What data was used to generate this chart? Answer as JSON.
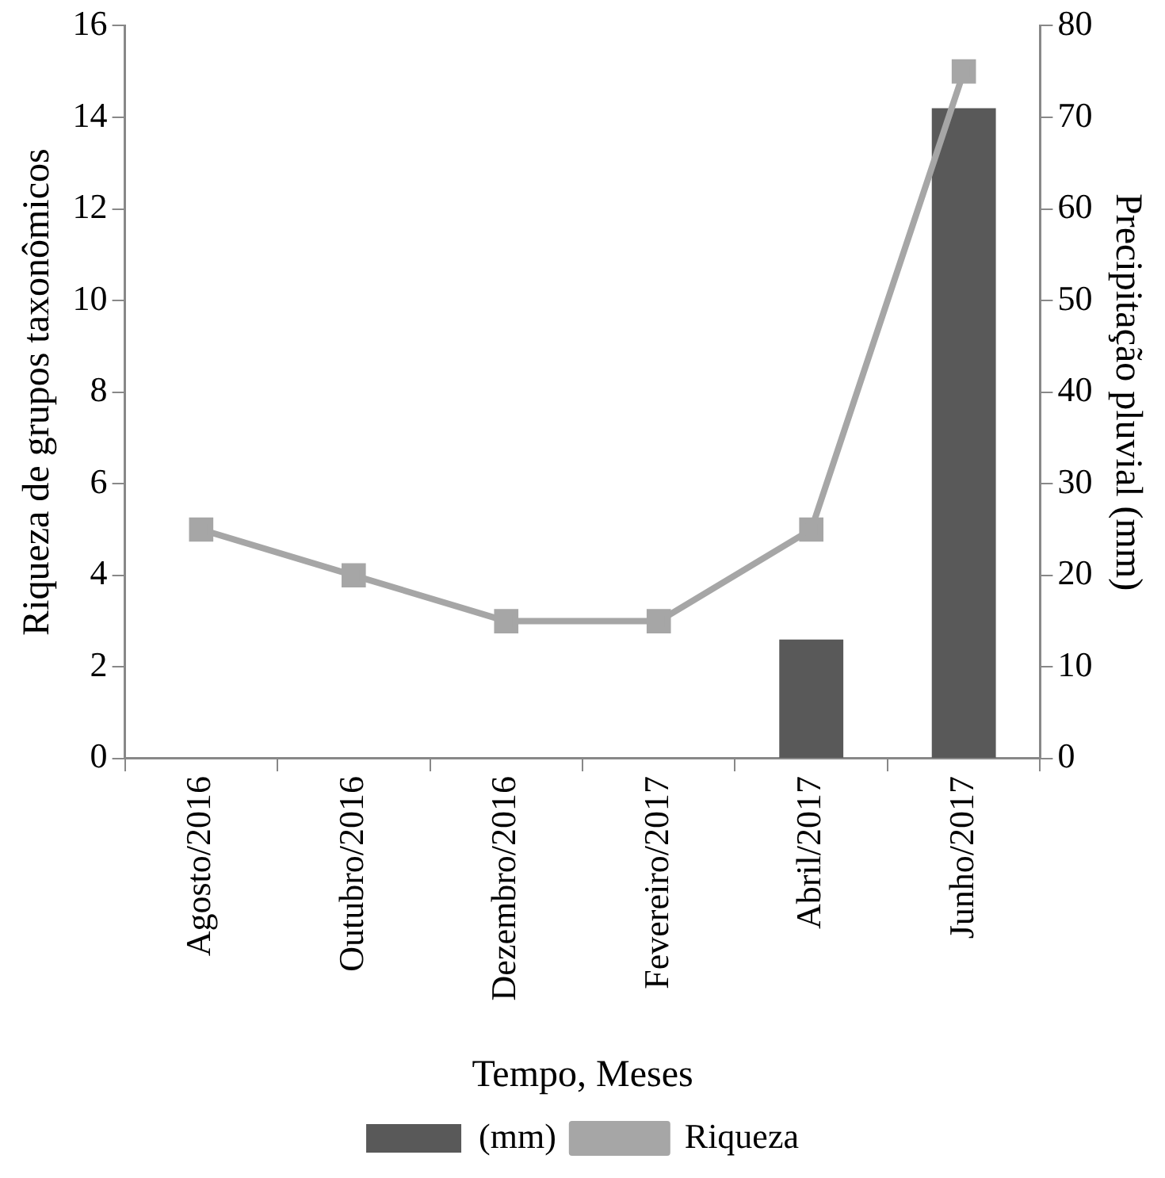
{
  "chart_data": {
    "type": "bar",
    "xlabel": "Tempo, Meses",
    "ylabel": "Riqueza de grupos taxonômicos",
    "y2label": "Precipitação pluvial (mm)",
    "categories": [
      "Agosto/2016",
      "Outubro/2016",
      "Dezembro/2016",
      "Fevereiro/2017",
      "Abril/2017",
      "Junho/2017"
    ],
    "series": [
      {
        "name": "(mm)",
        "axis": "y2",
        "color": "#595959",
        "values": [
          null,
          null,
          null,
          null,
          13,
          71
        ]
      },
      {
        "name": "Riqueza",
        "type": "line",
        "color": "#a6a6a6",
        "values": [
          5,
          4,
          3,
          3,
          5,
          15
        ]
      }
    ],
    "ylim": [
      0,
      16
    ],
    "yticks": [
      0,
      2,
      4,
      6,
      8,
      10,
      12,
      14,
      16
    ],
    "y2lim": [
      0,
      80
    ],
    "y2ticks": [
      0,
      10,
      20,
      30,
      40,
      50,
      60,
      70,
      80
    ],
    "grid": false,
    "legend": "bottom",
    "marker": "square"
  }
}
